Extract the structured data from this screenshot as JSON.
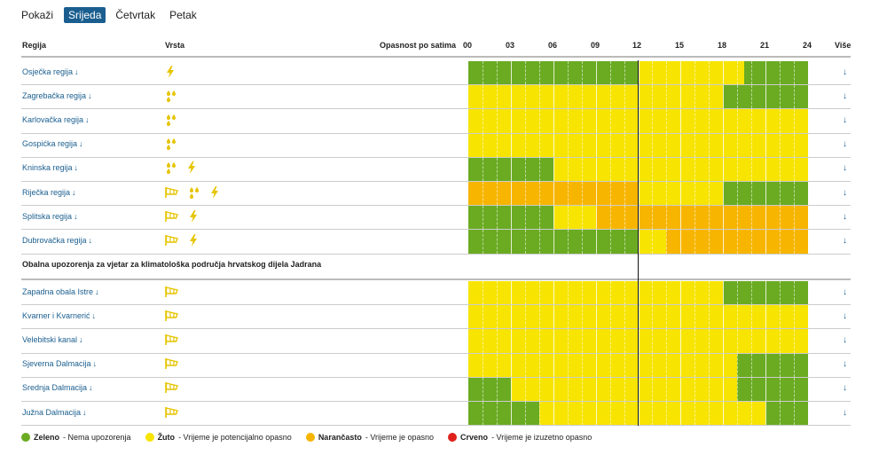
{
  "days": {
    "label": "Pokaži",
    "items": [
      "Srijeda",
      "Četvrtak",
      "Petak"
    ],
    "active": 0
  },
  "header": {
    "region": "Regija",
    "type": "Vrsta",
    "hazard": "Opasnost po satima",
    "hours": [
      "00",
      "03",
      "06",
      "09",
      "12",
      "15",
      "18",
      "21",
      "24"
    ],
    "more": "Više"
  },
  "colors": {
    "green": "#6aab22",
    "yellow": "#f7e400",
    "orange": "#f7b500",
    "red": "#e0201b",
    "icon": "#e6c400"
  },
  "section_title": "Obalna upozorenja za vjetar za klimatološka područja hrvatskog dijela Jadrana",
  "more_arrow": "↓",
  "rows": [
    {
      "name": "Osječka regija",
      "icons": [
        "lightning-icon"
      ],
      "segments": [
        [
          0,
          12,
          "green"
        ],
        [
          12,
          19.5,
          "yellow"
        ],
        [
          19.5,
          24,
          "green"
        ]
      ]
    },
    {
      "name": "Zagrebačka regija",
      "icons": [
        "rain-icon"
      ],
      "segments": [
        [
          0,
          18,
          "yellow"
        ],
        [
          18,
          24,
          "green"
        ]
      ]
    },
    {
      "name": "Karlovačka regija",
      "icons": [
        "rain-icon"
      ],
      "segments": [
        [
          0,
          24,
          "yellow"
        ]
      ]
    },
    {
      "name": "Gospićka regija",
      "icons": [
        "rain-icon"
      ],
      "segments": [
        [
          0,
          24,
          "yellow"
        ]
      ]
    },
    {
      "name": "Kninska regija",
      "icons": [
        "rain-icon",
        "lightning-icon"
      ],
      "segments": [
        [
          0,
          6,
          "green"
        ],
        [
          6,
          24,
          "yellow"
        ]
      ]
    },
    {
      "name": "Riječka regija",
      "icons": [
        "wind-icon",
        "rain-icon",
        "lightning-icon"
      ],
      "segments": [
        [
          0,
          12,
          "orange"
        ],
        [
          12,
          18,
          "yellow"
        ],
        [
          18,
          24,
          "green"
        ]
      ]
    },
    {
      "name": "Splitska regija",
      "icons": [
        "wind-icon",
        "lightning-icon"
      ],
      "segments": [
        [
          0,
          6,
          "green"
        ],
        [
          6,
          9,
          "yellow"
        ],
        [
          9,
          24,
          "orange"
        ]
      ]
    },
    {
      "name": "Dubrovačka regija",
      "icons": [
        "wind-icon",
        "lightning-icon"
      ],
      "segments": [
        [
          0,
          12,
          "green"
        ],
        [
          12,
          14,
          "yellow"
        ],
        [
          14,
          24,
          "orange"
        ]
      ]
    }
  ],
  "coastal_rows": [
    {
      "name": "Zapadna obala Istre",
      "icons": [
        "wind-icon"
      ],
      "segments": [
        [
          0,
          18,
          "yellow"
        ],
        [
          18,
          24,
          "green"
        ]
      ]
    },
    {
      "name": "Kvarner i Kvarnerić",
      "icons": [
        "wind-icon"
      ],
      "segments": [
        [
          0,
          24,
          "yellow"
        ]
      ]
    },
    {
      "name": "Velebitski kanal",
      "icons": [
        "wind-icon"
      ],
      "segments": [
        [
          0,
          24,
          "yellow"
        ]
      ]
    },
    {
      "name": "Sjeverna Dalmacija",
      "icons": [
        "wind-icon"
      ],
      "segments": [
        [
          0,
          19,
          "yellow"
        ],
        [
          19,
          24,
          "green"
        ]
      ]
    },
    {
      "name": "Srednja Dalmacija",
      "icons": [
        "wind-icon"
      ],
      "segments": [
        [
          0,
          3,
          "green"
        ],
        [
          3,
          19,
          "yellow"
        ],
        [
          19,
          24,
          "green"
        ]
      ]
    },
    {
      "name": "Južna Dalmacija",
      "icons": [
        "wind-icon"
      ],
      "segments": [
        [
          0,
          5,
          "green"
        ],
        [
          5,
          21,
          "yellow"
        ],
        [
          21,
          24,
          "green"
        ]
      ]
    }
  ],
  "legend": [
    {
      "color": "green",
      "name": "Zeleno",
      "desc": " - Nema upozorenja"
    },
    {
      "color": "yellow",
      "name": "Žuto",
      "desc": " - Vrijeme je potencijalno opasno"
    },
    {
      "color": "orange",
      "name": "Narančasto",
      "desc": " - Vrijeme je opasno"
    },
    {
      "color": "red",
      "name": "Crveno",
      "desc": " - Vrijeme je izuzetno opasno"
    }
  ]
}
